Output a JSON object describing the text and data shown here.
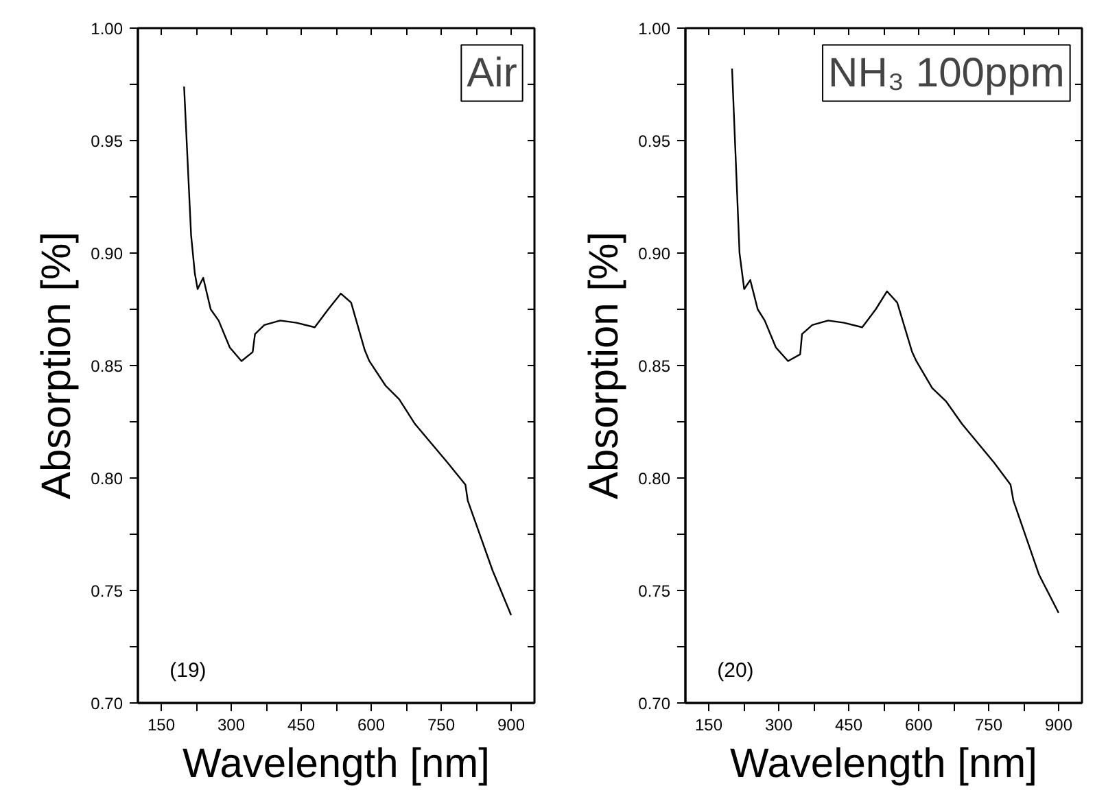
{
  "chart_data": [
    {
      "type": "line",
      "xlabel": "Wavelength [nm]",
      "ylabel": "Absorption [%]",
      "annotations": [
        "Air",
        "(19)"
      ],
      "xlim": [
        100,
        950
      ],
      "ylim": [
        0.7,
        1.0
      ],
      "xticks": [
        150,
        {
          "value": 225,
          "label": null
        },
        300,
        {
          "value": 375,
          "label": null
        },
        450,
        {
          "value": 525,
          "label": null
        },
        600,
        {
          "value": 675,
          "label": null
        },
        750,
        {
          "value": 825,
          "label": null
        },
        900
      ],
      "yticks": [
        {
          "value": 0.7,
          "label": "0.70"
        },
        {
          "value": 0.725,
          "label": null
        },
        {
          "value": 0.75,
          "label": "0.75"
        },
        {
          "value": 0.775,
          "label": null
        },
        {
          "value": 0.8,
          "label": "0.80"
        },
        {
          "value": 0.825,
          "label": null
        },
        {
          "value": 0.85,
          "label": "0.85"
        },
        {
          "value": 0.875,
          "label": null
        },
        {
          "value": 0.9,
          "label": "0.90"
        },
        {
          "value": 0.925,
          "label": null
        },
        {
          "value": 0.95,
          "label": "0.95"
        },
        {
          "value": 0.975,
          "label": null
        },
        {
          "value": 1.0,
          "label": "1.00"
        }
      ],
      "grid": false,
      "series": [
        {
          "color": "#000000",
          "x": [
            199,
            214,
            222,
            228,
            240,
            256,
            273,
            297,
            322,
            346,
            351,
            371,
            405,
            440,
            479,
            508,
            535,
            557,
            586,
            596,
            631,
            660,
            694,
            763,
            802,
            807,
            860,
            900
          ],
          "values": [
            0.974,
            0.908,
            0.891,
            0.884,
            0.889,
            0.875,
            0.87,
            0.858,
            0.852,
            0.856,
            0.864,
            0.868,
            0.87,
            0.869,
            0.867,
            0.875,
            0.882,
            0.878,
            0.857,
            0.852,
            0.841,
            0.835,
            0.824,
            0.807,
            0.797,
            0.79,
            0.759,
            0.739
          ]
        }
      ]
    },
    {
      "type": "line",
      "xlabel": "Wavelength [nm]",
      "ylabel": "Absorption [%]",
      "annotations": [
        "NH₃ 100ppm",
        "(20)"
      ],
      "xlim": [
        100,
        950
      ],
      "ylim": [
        0.7,
        1.0
      ],
      "xticks": [
        150,
        {
          "value": 225,
          "label": null
        },
        300,
        {
          "value": 375,
          "label": null
        },
        450,
        {
          "value": 525,
          "label": null
        },
        600,
        {
          "value": 675,
          "label": null
        },
        750,
        {
          "value": 825,
          "label": null
        },
        900
      ],
      "yticks": [
        {
          "value": 0.7,
          "label": "0.70"
        },
        {
          "value": 0.725,
          "label": null
        },
        {
          "value": 0.75,
          "label": "0.75"
        },
        {
          "value": 0.775,
          "label": null
        },
        {
          "value": 0.8,
          "label": "0.80"
        },
        {
          "value": 0.825,
          "label": null
        },
        {
          "value": 0.85,
          "label": "0.85"
        },
        {
          "value": 0.875,
          "label": null
        },
        {
          "value": 0.9,
          "label": "0.90"
        },
        {
          "value": 0.925,
          "label": null
        },
        {
          "value": 0.95,
          "label": "0.95"
        },
        {
          "value": 0.975,
          "label": null
        },
        {
          "value": 1.0,
          "label": "1.00"
        }
      ],
      "grid": false,
      "series": [
        {
          "color": "#000000",
          "x": [
            200,
            216,
            226,
            239,
            255,
            270,
            294,
            320,
            346,
            350,
            372,
            406,
            440,
            479,
            508,
            532,
            554,
            586,
            595,
            629,
            659,
            693,
            761,
            797,
            803,
            858,
            900
          ],
          "values": [
            0.982,
            0.9,
            0.884,
            0.888,
            0.875,
            0.87,
            0.858,
            0.852,
            0.855,
            0.864,
            0.868,
            0.87,
            0.869,
            0.867,
            0.875,
            0.883,
            0.878,
            0.856,
            0.852,
            0.84,
            0.834,
            0.824,
            0.807,
            0.797,
            0.79,
            0.757,
            0.74
          ]
        }
      ]
    }
  ]
}
